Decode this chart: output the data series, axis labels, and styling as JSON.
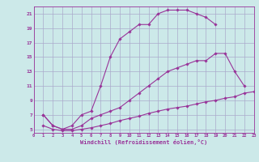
{
  "xlabel": "Windchill (Refroidissement éolien,°C)",
  "bg_color": "#cce9e9",
  "grid_color": "#aaaacc",
  "line_color": "#993399",
  "xlim": [
    0,
    23
  ],
  "ylim": [
    4.5,
    22
  ],
  "xticks": [
    0,
    1,
    2,
    3,
    4,
    5,
    6,
    7,
    8,
    9,
    10,
    11,
    12,
    13,
    14,
    15,
    16,
    17,
    18,
    19,
    20,
    21,
    22,
    23
  ],
  "yticks": [
    5,
    7,
    9,
    11,
    13,
    15,
    17,
    19,
    21
  ],
  "curve1_x": [
    1,
    2,
    3,
    4,
    5,
    6,
    7,
    8,
    9,
    10,
    11,
    12,
    13,
    14,
    15,
    16,
    17,
    18,
    19
  ],
  "curve1_y": [
    7.0,
    5.5,
    5.0,
    5.5,
    7.0,
    7.5,
    11.0,
    15.0,
    17.5,
    18.5,
    19.5,
    19.5,
    21.0,
    21.5,
    21.5,
    21.5,
    21.0,
    20.5,
    19.5
  ],
  "curve2_x": [
    1,
    2,
    3,
    4,
    5,
    6,
    7,
    8,
    9,
    10,
    11,
    12,
    13,
    14,
    15,
    16,
    17,
    18,
    19,
    20,
    21,
    22
  ],
  "curve2_y": [
    7.0,
    5.5,
    5.0,
    5.0,
    5.5,
    6.5,
    7.0,
    7.5,
    8.0,
    9.0,
    10.0,
    11.0,
    12.0,
    13.0,
    13.5,
    14.0,
    14.5,
    14.5,
    15.5,
    15.5,
    13.0,
    11.0
  ],
  "curve3_x": [
    1,
    2,
    3,
    4,
    5,
    6,
    7,
    8,
    9,
    10,
    11,
    12,
    13,
    14,
    15,
    16,
    17,
    18,
    19,
    20,
    21,
    22,
    23
  ],
  "curve3_y": [
    5.5,
    5.0,
    4.8,
    4.8,
    5.0,
    5.2,
    5.5,
    5.8,
    6.2,
    6.5,
    6.8,
    7.2,
    7.5,
    7.8,
    8.0,
    8.2,
    8.5,
    8.8,
    9.0,
    9.3,
    9.5,
    10.0,
    10.2
  ]
}
